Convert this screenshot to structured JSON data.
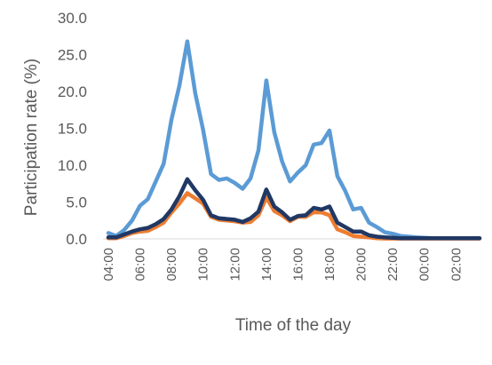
{
  "chart_data": {
    "type": "line",
    "title": "",
    "xlabel": "Time of the day",
    "ylabel": "Participation rate (%)",
    "ylim": [
      0,
      30
    ],
    "yticks": [
      "0.0",
      "5.0",
      "10.0",
      "15.0",
      "20.0",
      "25.0",
      "30.0"
    ],
    "xticks": [
      "04:00",
      "06:00",
      "08:00",
      "10:00",
      "12:00",
      "14:00",
      "16:00",
      "18:00",
      "20:00",
      "22:00",
      "00:00",
      "02:00"
    ],
    "x": [
      "04:00",
      "04:30",
      "05:00",
      "05:30",
      "06:00",
      "06:30",
      "07:00",
      "07:30",
      "08:00",
      "08:30",
      "09:00",
      "09:30",
      "10:00",
      "10:30",
      "11:00",
      "11:30",
      "12:00",
      "12:30",
      "13:00",
      "13:30",
      "14:00",
      "14:30",
      "15:00",
      "15:30",
      "16:00",
      "16:30",
      "17:00",
      "17:30",
      "18:00",
      "18:30",
      "19:00",
      "19:30",
      "20:00",
      "20:30",
      "21:00",
      "21:30",
      "22:00",
      "22:30",
      "23:00",
      "23:30",
      "00:00",
      "00:30",
      "01:00",
      "01:30",
      "02:00",
      "02:30",
      "03:00",
      "03:30"
    ],
    "grid": false,
    "legend": "none",
    "series": [
      {
        "color": "#5b9bd5",
        "values": [
          0.8,
          0.4,
          1.2,
          2.5,
          4.5,
          5.4,
          7.8,
          10.2,
          16.2,
          20.8,
          26.8,
          19.8,
          14.8,
          8.8,
          8.0,
          8.2,
          7.6,
          6.8,
          8.2,
          12.0,
          21.5,
          14.5,
          10.5,
          7.8,
          9.0,
          10.0,
          12.8,
          13.0,
          14.7,
          8.5,
          6.5,
          4.0,
          4.2,
          2.2,
          1.6,
          0.9,
          0.7,
          0.4,
          0.3,
          0.2,
          0.15,
          0.1,
          0.1,
          0.1,
          0.1,
          0.1,
          0.1,
          0.1
        ]
      },
      {
        "color": "#ed7d31",
        "values": [
          0.1,
          0.1,
          0.4,
          0.8,
          1.0,
          1.1,
          1.6,
          2.2,
          3.6,
          4.8,
          6.2,
          5.5,
          4.8,
          3.0,
          2.6,
          2.5,
          2.4,
          2.2,
          2.3,
          3.2,
          5.6,
          3.8,
          3.2,
          2.4,
          3.0,
          3.0,
          3.6,
          3.6,
          3.2,
          1.3,
          0.9,
          0.4,
          0.3,
          0.2,
          0.1,
          0.05,
          0.05,
          0.05,
          0.05,
          0.05,
          0.05,
          0.05,
          0.05,
          0.05,
          0.05,
          0.05,
          0.05,
          0.05
        ]
      },
      {
        "color": "#203864",
        "values": [
          0.2,
          0.2,
          0.6,
          1.0,
          1.3,
          1.5,
          2.0,
          2.7,
          4.0,
          5.8,
          8.1,
          6.6,
          5.3,
          3.2,
          2.8,
          2.7,
          2.6,
          2.3,
          2.8,
          3.7,
          6.7,
          4.4,
          3.6,
          2.6,
          3.1,
          3.2,
          4.2,
          4.0,
          4.4,
          2.2,
          1.6,
          1.0,
          1.0,
          0.5,
          0.3,
          0.2,
          0.15,
          0.1,
          0.1,
          0.1,
          0.1,
          0.1,
          0.1,
          0.1,
          0.1,
          0.1,
          0.1,
          0.1
        ]
      }
    ]
  }
}
